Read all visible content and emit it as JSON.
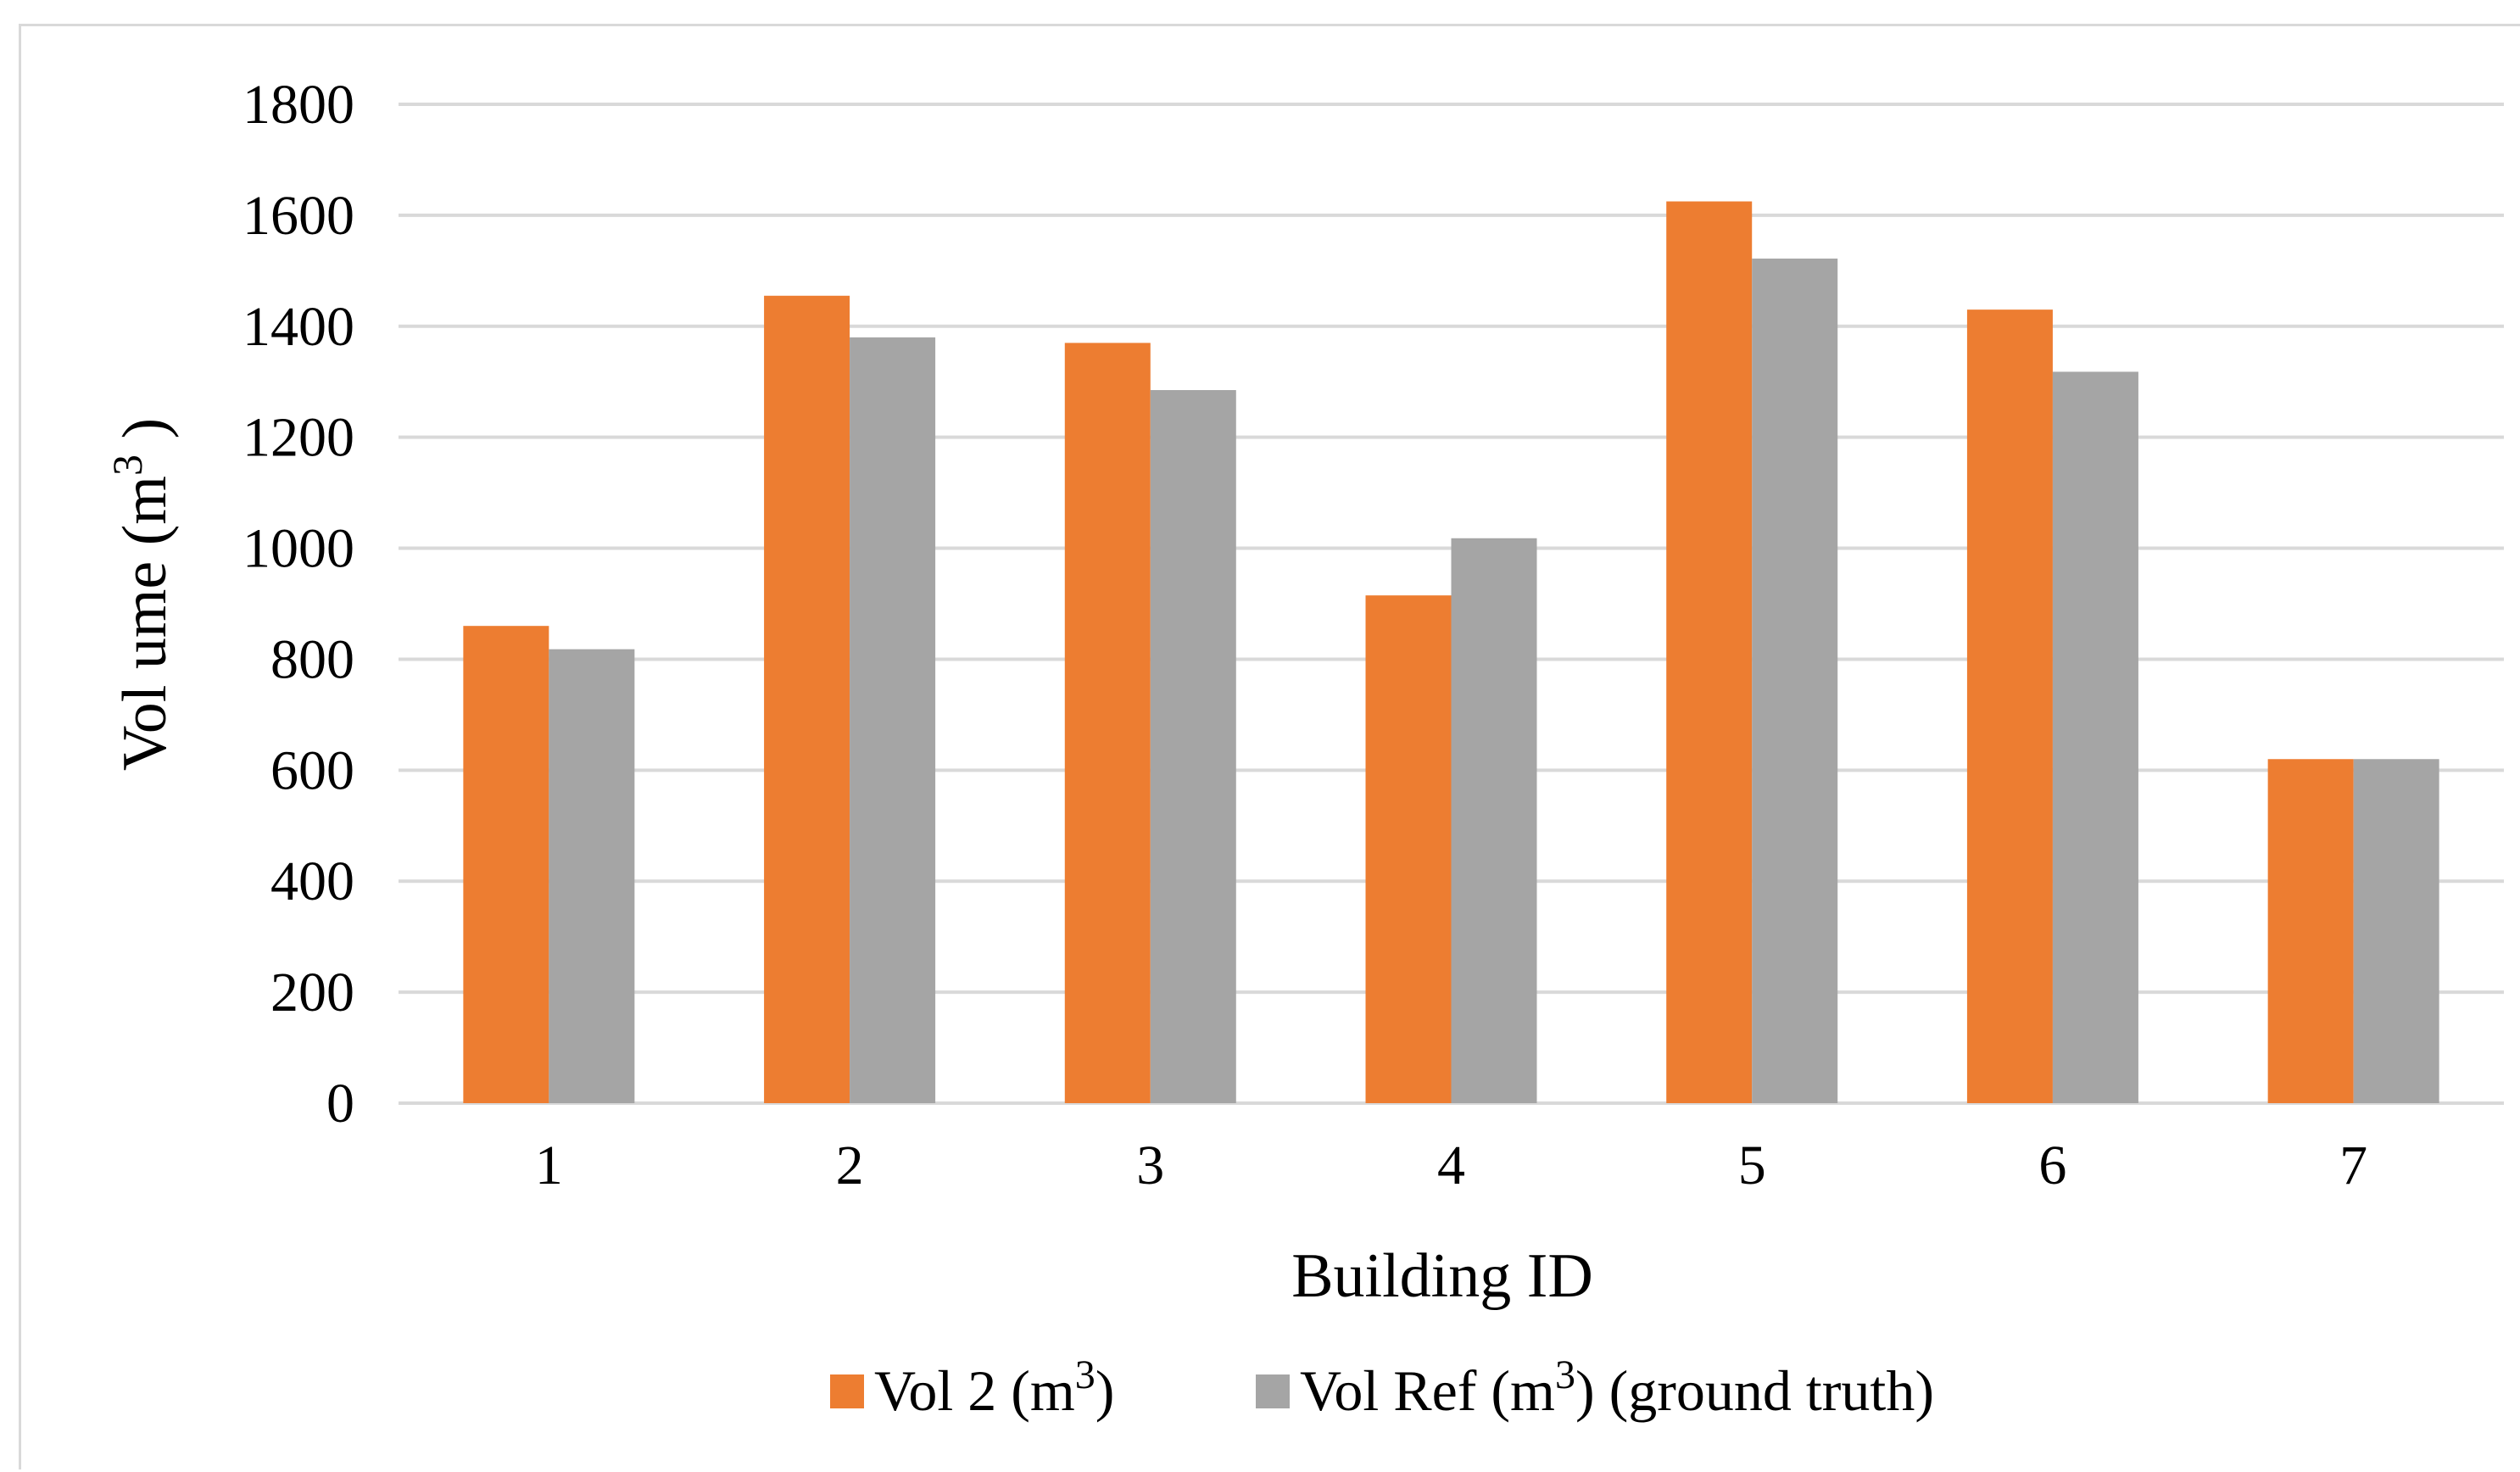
{
  "chart_data": {
    "type": "bar",
    "categories": [
      "1",
      "2",
      "3",
      "4",
      "5",
      "6",
      "7"
    ],
    "series": [
      {
        "name": "Vol 2 (m3)",
        "legend_main": "Vol 2 (m",
        "legend_sup": "3",
        "legend_tail": ")",
        "color": "#ED7D31",
        "values": [
          860,
          1455,
          1370,
          915,
          1625,
          1430,
          620
        ]
      },
      {
        "name": "Vol Ref (m3) (ground truth)",
        "legend_main": "Vol Ref (m",
        "legend_sup": "3",
        "legend_tail": ") (ground truth)",
        "color": "#A5A5A5",
        "values": [
          818,
          1380,
          1285,
          1018,
          1522,
          1318,
          620
        ]
      }
    ],
    "yticks": [
      "0",
      "200",
      "400",
      "600",
      "800",
      "1000",
      "1200",
      "1400",
      "1600",
      "1800"
    ],
    "ylim": [
      0,
      1800
    ],
    "xlabel": "Building ID",
    "ylabel_main": "Vol ume (m",
    "ylabel_sup": "3",
    "ylabel_tail": " )",
    "grid": true,
    "legend_position": "bottom"
  }
}
